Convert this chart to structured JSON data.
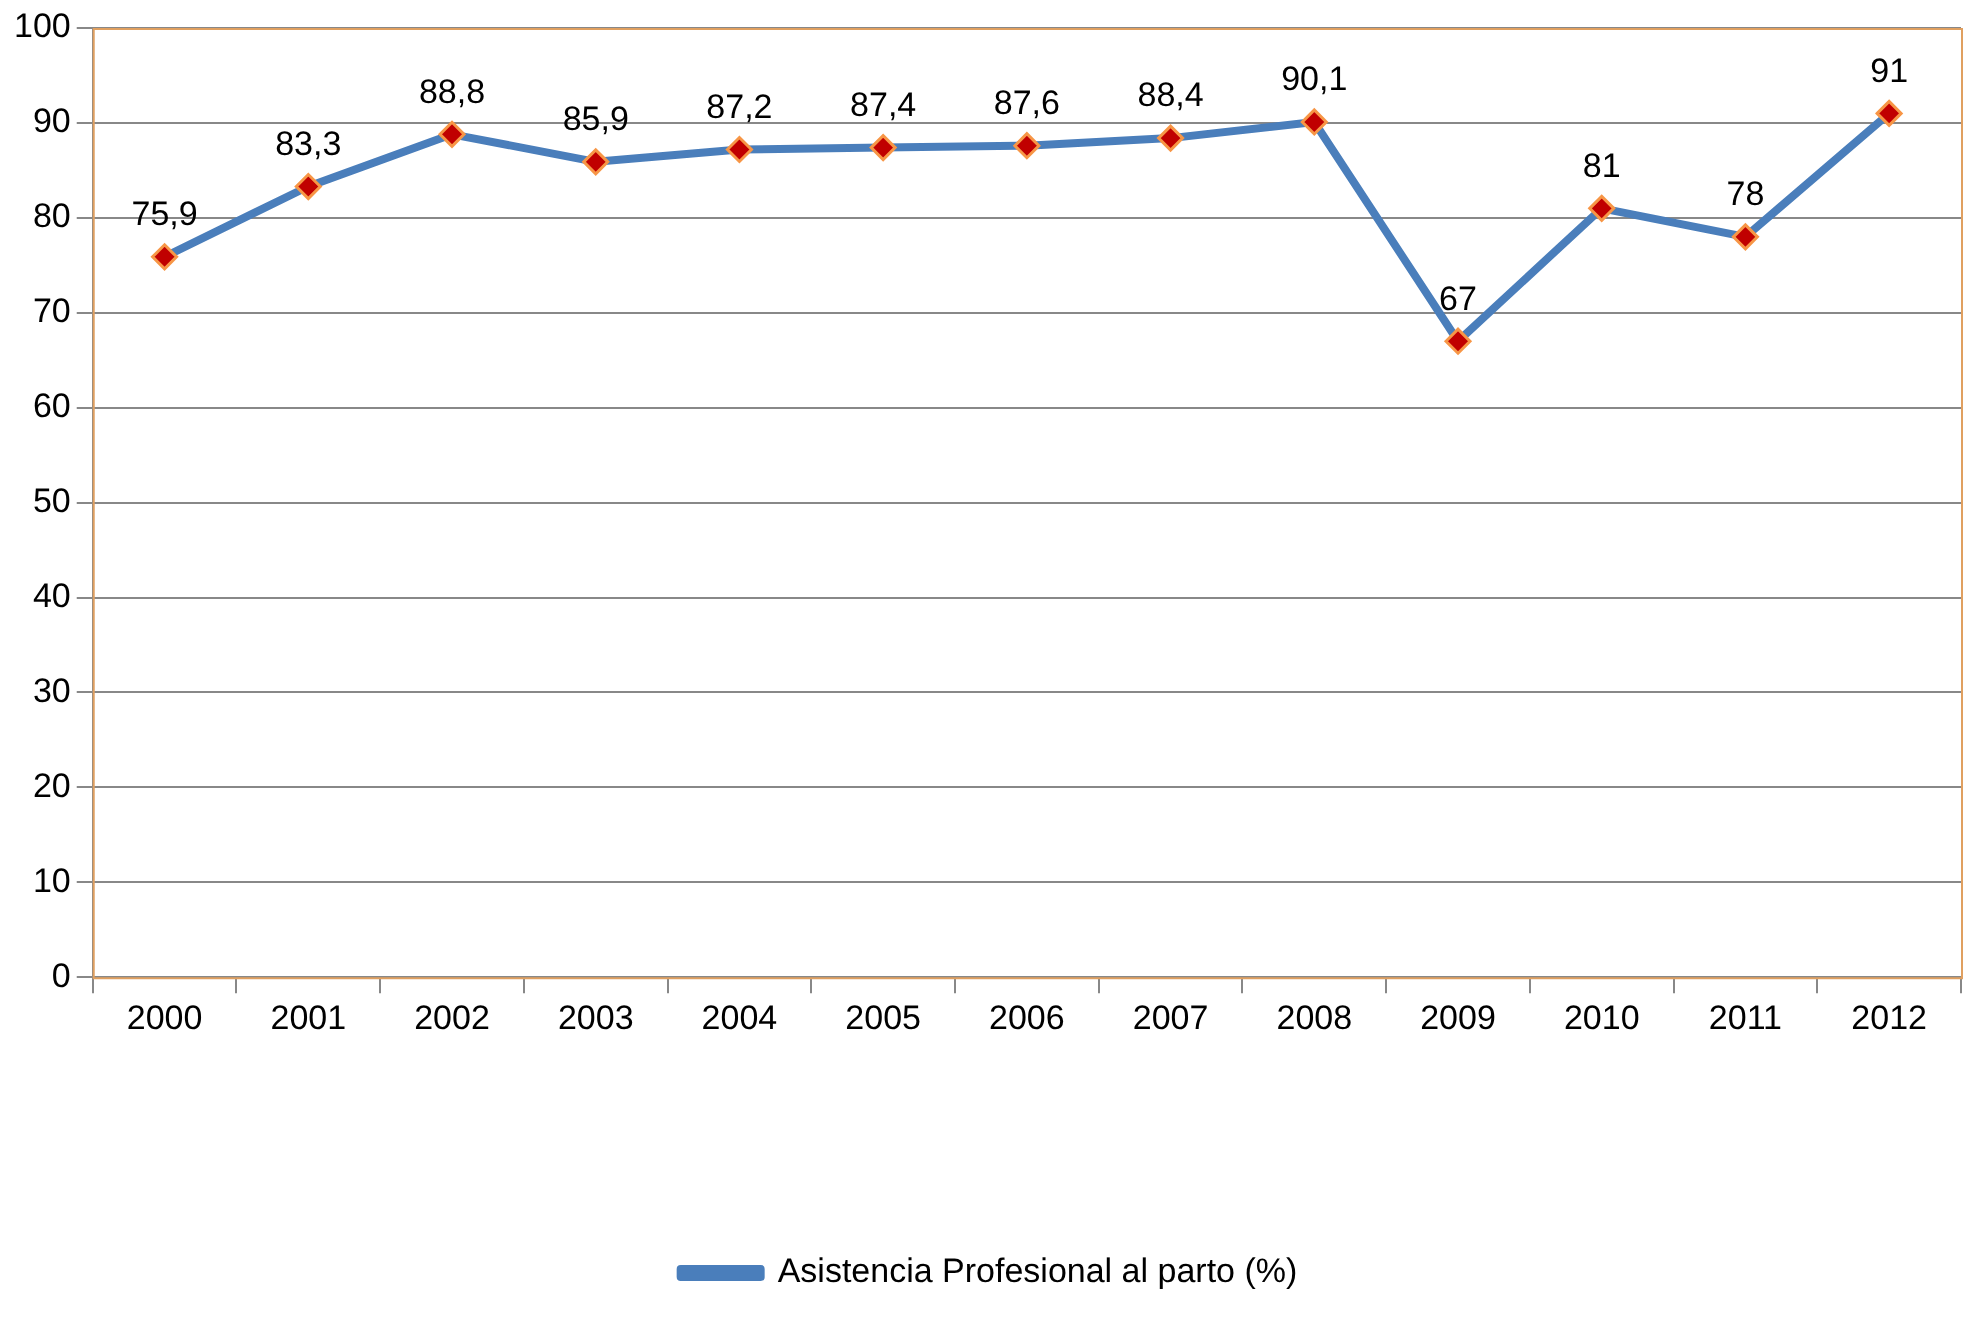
{
  "chart_data": {
    "type": "line",
    "categories": [
      "2000",
      "2001",
      "2002",
      "2003",
      "2004",
      "2005",
      "2006",
      "2007",
      "2008",
      "2009",
      "2010",
      "2011",
      "2012"
    ],
    "series": [
      {
        "name": "Asistencia Profesional al parto (%)",
        "color": "#4a7ebb",
        "values": [
          75.9,
          83.3,
          88.8,
          85.9,
          87.2,
          87.4,
          87.6,
          88.4,
          90.1,
          67,
          81,
          78,
          91
        ],
        "value_labels": [
          "75,9",
          "83,3",
          "88,8",
          "85,9",
          "87,2",
          "87,4",
          "87,6",
          "88,4",
          "90,1",
          "67",
          "81",
          "78",
          "91"
        ]
      }
    ],
    "ylim": [
      0,
      100
    ],
    "yticks": [
      0,
      10,
      20,
      30,
      40,
      50,
      60,
      70,
      80,
      90,
      100
    ],
    "grid": "y",
    "legend": "bottom",
    "marker": "diamond",
    "line_style": "solid"
  }
}
